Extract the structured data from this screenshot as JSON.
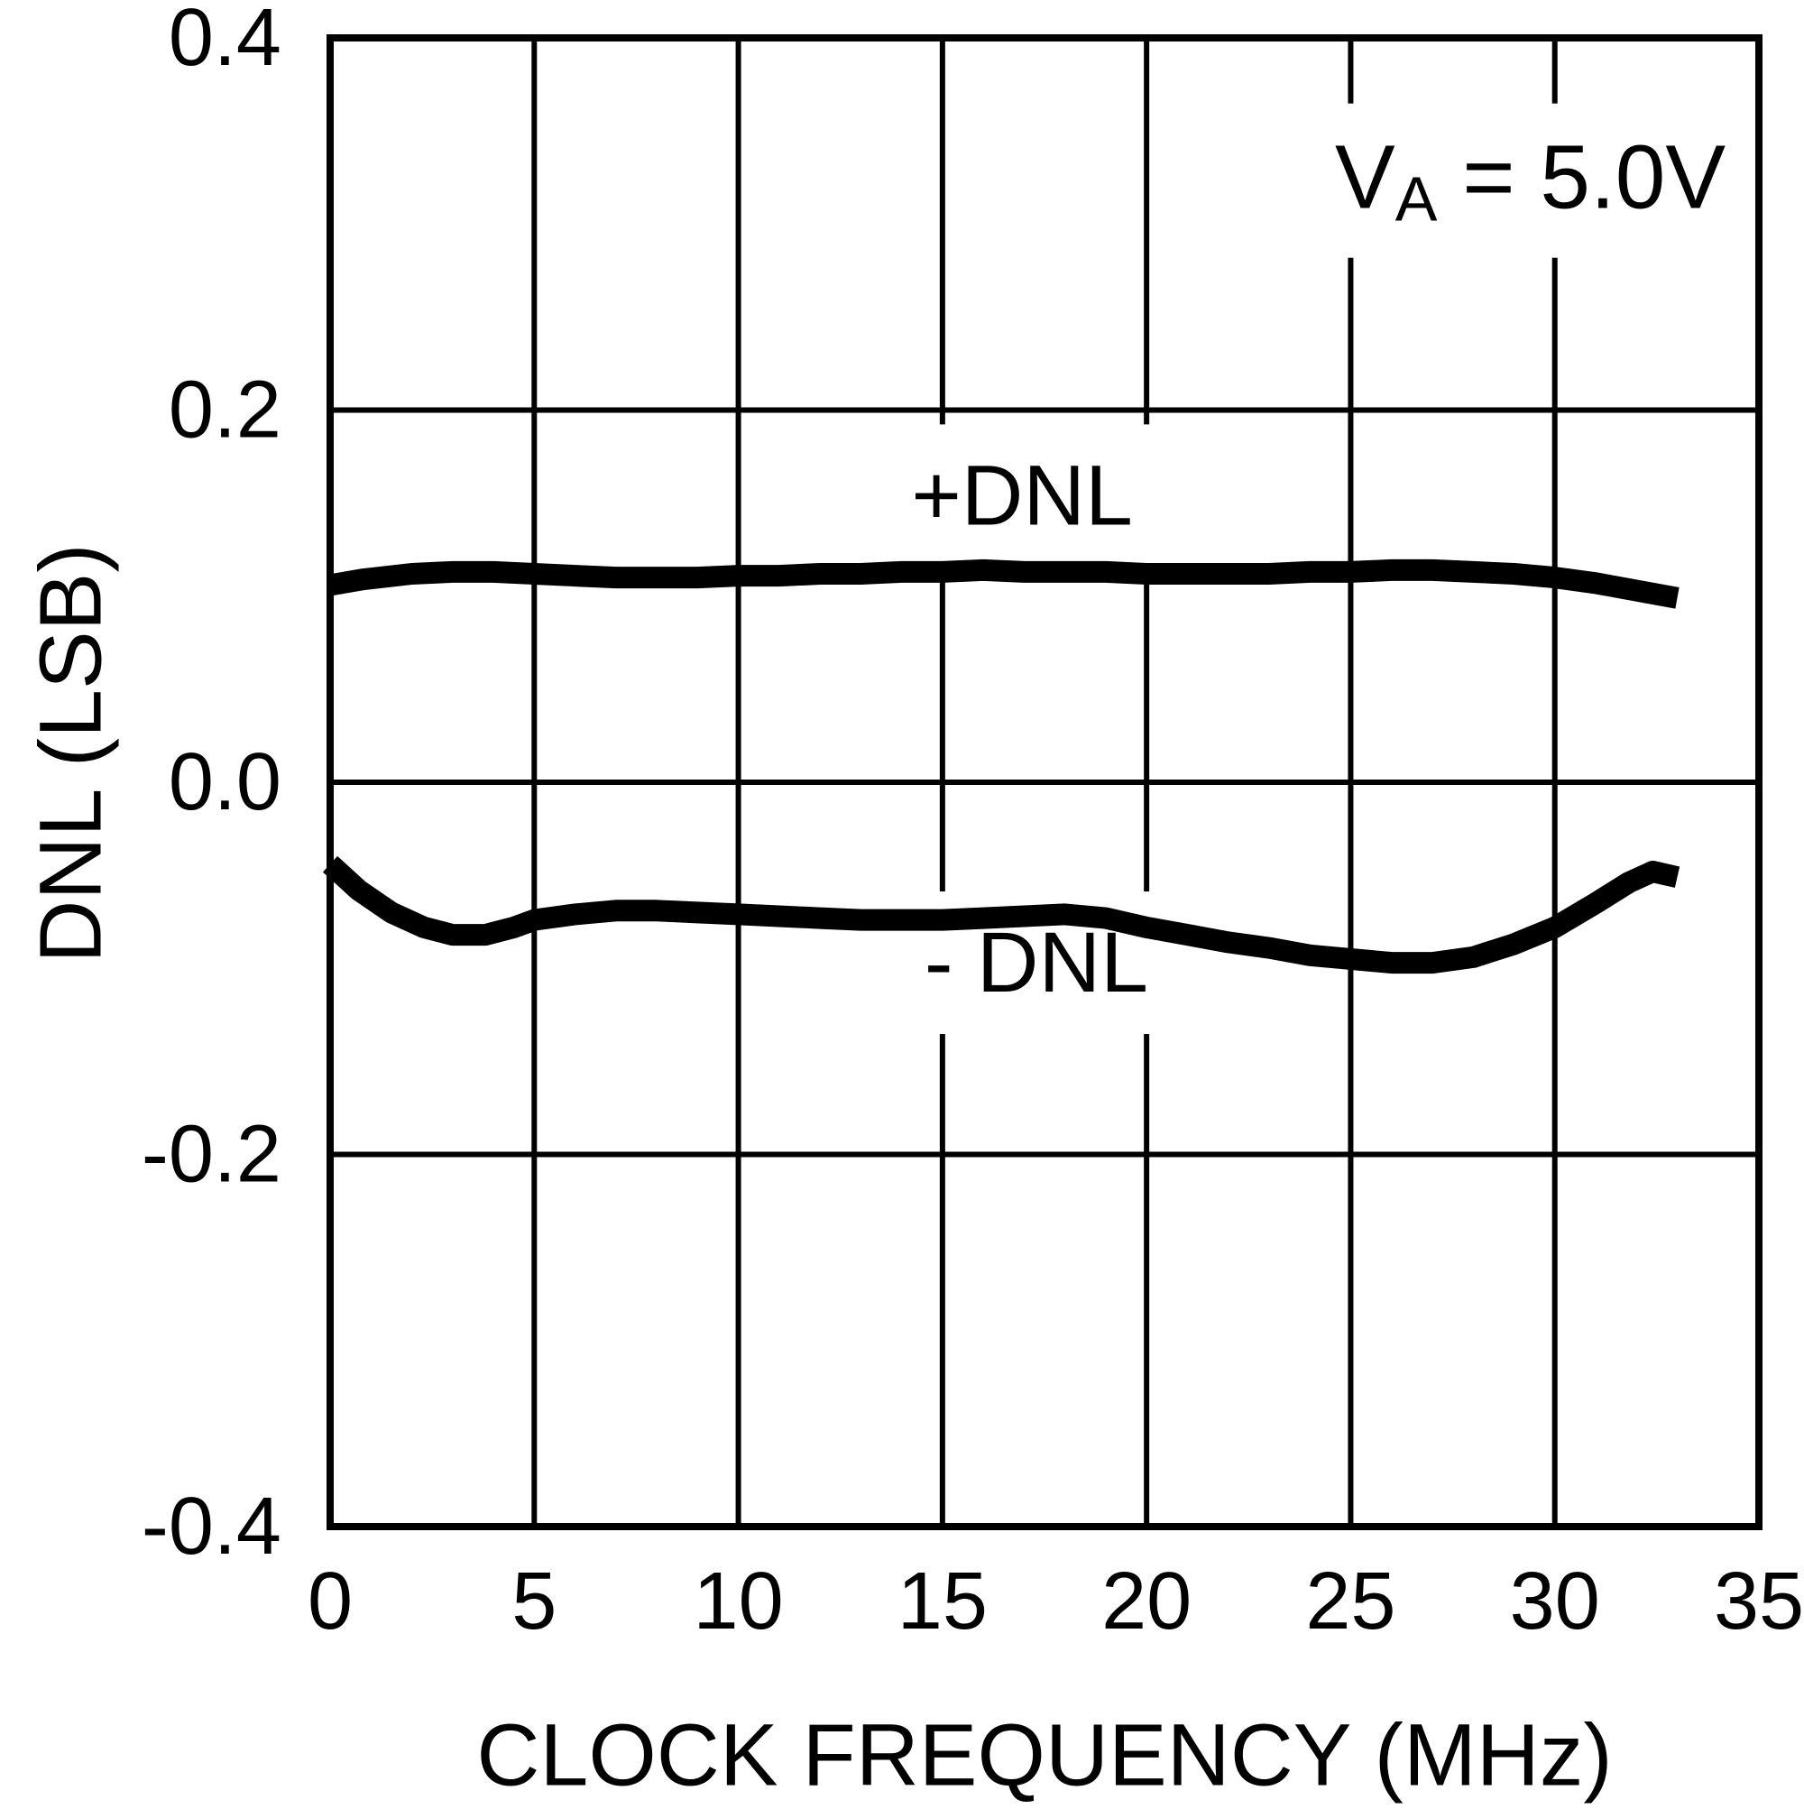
{
  "figure": {
    "background": "#ffffff",
    "ink": "#000000"
  },
  "chart_data": {
    "type": "line",
    "title": "",
    "xlabel": "CLOCK FREQUENCY (MHz)",
    "ylabel": "DNL (LSB)",
    "xlim": [
      0,
      35
    ],
    "ylim": [
      -0.4,
      0.4
    ],
    "grid": true,
    "legend_position": "none",
    "x_ticks": {
      "values": [
        0,
        5,
        10,
        15,
        20,
        25,
        30,
        35
      ],
      "labels": [
        "0",
        "5",
        "10",
        "15",
        "20",
        "25",
        "30",
        "35"
      ]
    },
    "y_ticks": {
      "values": [
        0.4,
        0.2,
        0.0,
        -0.2,
        -0.4
      ],
      "labels": [
        "0.4",
        "0.2",
        "0.0",
        "-0.2",
        "-0.4"
      ]
    },
    "annotation": {
      "pre": "V",
      "sub": "A",
      "post": " = 5.0V",
      "x": 29.4,
      "y": 0.325
    },
    "series": [
      {
        "name": "plus-dnl",
        "label": "+DNL",
        "label_x": 16.95,
        "label_y": 0.154,
        "points": [
          [
            0,
            0.106
          ],
          [
            0.8,
            0.109
          ],
          [
            2,
            0.112
          ],
          [
            3,
            0.113
          ],
          [
            4,
            0.113
          ],
          [
            5,
            0.112
          ],
          [
            6,
            0.111
          ],
          [
            7,
            0.11
          ],
          [
            8,
            0.11
          ],
          [
            9,
            0.11
          ],
          [
            10,
            0.111
          ],
          [
            11,
            0.111
          ],
          [
            12,
            0.112
          ],
          [
            13,
            0.112
          ],
          [
            14,
            0.113
          ],
          [
            15,
            0.113
          ],
          [
            16,
            0.114
          ],
          [
            17,
            0.113
          ],
          [
            18,
            0.113
          ],
          [
            19,
            0.113
          ],
          [
            20,
            0.112
          ],
          [
            21,
            0.112
          ],
          [
            22,
            0.112
          ],
          [
            23,
            0.112
          ],
          [
            24,
            0.113
          ],
          [
            25,
            0.113
          ],
          [
            26,
            0.114
          ],
          [
            27,
            0.114
          ],
          [
            28,
            0.113
          ],
          [
            29,
            0.112
          ],
          [
            30,
            0.11
          ],
          [
            31,
            0.107
          ],
          [
            32,
            0.103
          ],
          [
            33,
            0.099
          ]
        ]
      },
      {
        "name": "minus-dnl",
        "label": "- DNL",
        "label_x": 17.3,
        "label_y": -0.097,
        "points": [
          [
            0,
            -0.044
          ],
          [
            0.7,
            -0.058
          ],
          [
            1.5,
            -0.07
          ],
          [
            2.3,
            -0.078
          ],
          [
            3,
            -0.082
          ],
          [
            3.8,
            -0.082
          ],
          [
            4.5,
            -0.078
          ],
          [
            5,
            -0.074
          ],
          [
            6,
            -0.071
          ],
          [
            7,
            -0.069
          ],
          [
            8,
            -0.069
          ],
          [
            9,
            -0.07
          ],
          [
            10,
            -0.071
          ],
          [
            11,
            -0.072
          ],
          [
            12,
            -0.073
          ],
          [
            13,
            -0.074
          ],
          [
            14,
            -0.074
          ],
          [
            15,
            -0.074
          ],
          [
            16,
            -0.073
          ],
          [
            17,
            -0.072
          ],
          [
            18,
            -0.071
          ],
          [
            19,
            -0.073
          ],
          [
            20,
            -0.078
          ],
          [
            21,
            -0.082
          ],
          [
            22,
            -0.086
          ],
          [
            23,
            -0.089
          ],
          [
            24,
            -0.093
          ],
          [
            25,
            -0.095
          ],
          [
            26,
            -0.097
          ],
          [
            27,
            -0.097
          ],
          [
            28,
            -0.094
          ],
          [
            29,
            -0.087
          ],
          [
            30,
            -0.078
          ],
          [
            31,
            -0.065
          ],
          [
            31.8,
            -0.054
          ],
          [
            32.4,
            -0.048
          ],
          [
            33,
            -0.051
          ]
        ]
      }
    ]
  }
}
